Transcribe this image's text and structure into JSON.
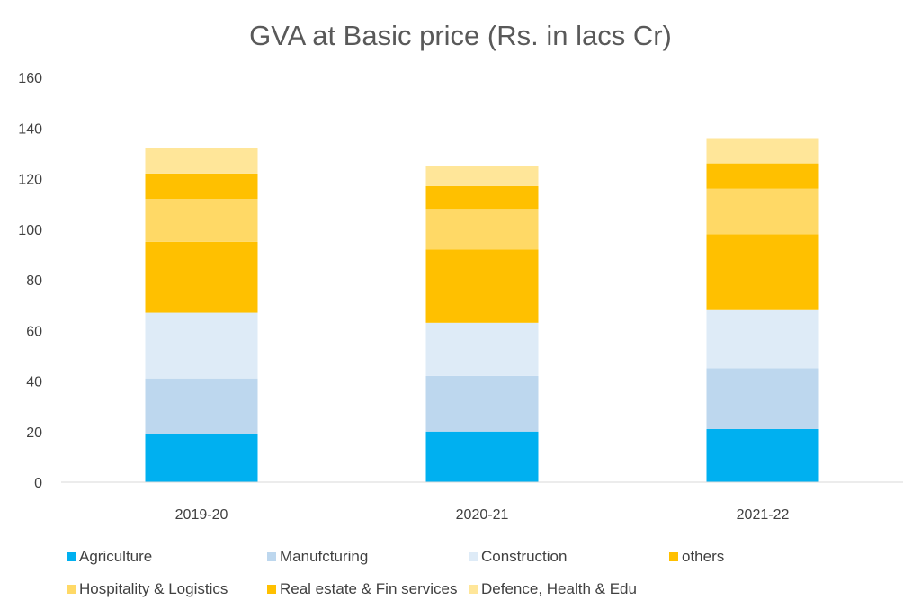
{
  "chart_data": {
    "type": "bar",
    "stacked": true,
    "title": "GVA at Basic price (Rs. in lacs Cr)",
    "xlabel": "",
    "ylabel": "",
    "ylim": [
      0,
      160
    ],
    "yticks": [
      0,
      20,
      40,
      60,
      80,
      100,
      120,
      140,
      160
    ],
    "categories": [
      "2019-20",
      "2020-21",
      "2021-22"
    ],
    "legend_position": "bottom",
    "grid": false,
    "series": [
      {
        "name": "Agriculture",
        "color": "#00b0f0",
        "values": [
          19,
          20,
          21
        ]
      },
      {
        "name": "Manufcturing",
        "color": "#bdd7ee",
        "values": [
          22,
          22,
          24
        ]
      },
      {
        "name": "Construction",
        "color": "#deebf7",
        "values": [
          26,
          21,
          23
        ]
      },
      {
        "name": "others",
        "color": "#ffc000",
        "values": [
          28,
          29,
          30
        ]
      },
      {
        "name": "Hospitality & Logistics",
        "color": "#ffd966",
        "values": [
          17,
          16,
          18
        ]
      },
      {
        "name": "Real estate &  Fin services",
        "color": "#ffc000",
        "values": [
          10,
          9,
          10
        ]
      },
      {
        "name": "Defence, Health & Edu",
        "color": "#ffe699",
        "values": [
          10,
          8,
          10
        ]
      }
    ]
  }
}
